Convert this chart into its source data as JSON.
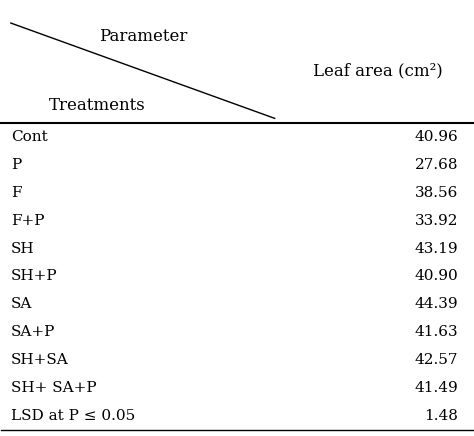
{
  "header_left": "Treatments",
  "header_right": "Parameter",
  "column_header": "Leaf area (cm²)",
  "rows": [
    [
      "Cont",
      "40.96"
    ],
    [
      "P",
      "27.68"
    ],
    [
      "F",
      "38.56"
    ],
    [
      "F+P",
      "33.92"
    ],
    [
      "SH",
      "43.19"
    ],
    [
      "SH+P",
      "40.90"
    ],
    [
      "SA",
      "44.39"
    ],
    [
      "SA+P",
      "41.63"
    ],
    [
      "SH+SA",
      "42.57"
    ],
    [
      "SH+ SA+P",
      "41.49"
    ],
    [
      "LSD at P ≤ 0.05",
      "1.48"
    ]
  ],
  "bg_color": "white",
  "text_color": "black",
  "font_size": 11,
  "header_font_size": 12
}
